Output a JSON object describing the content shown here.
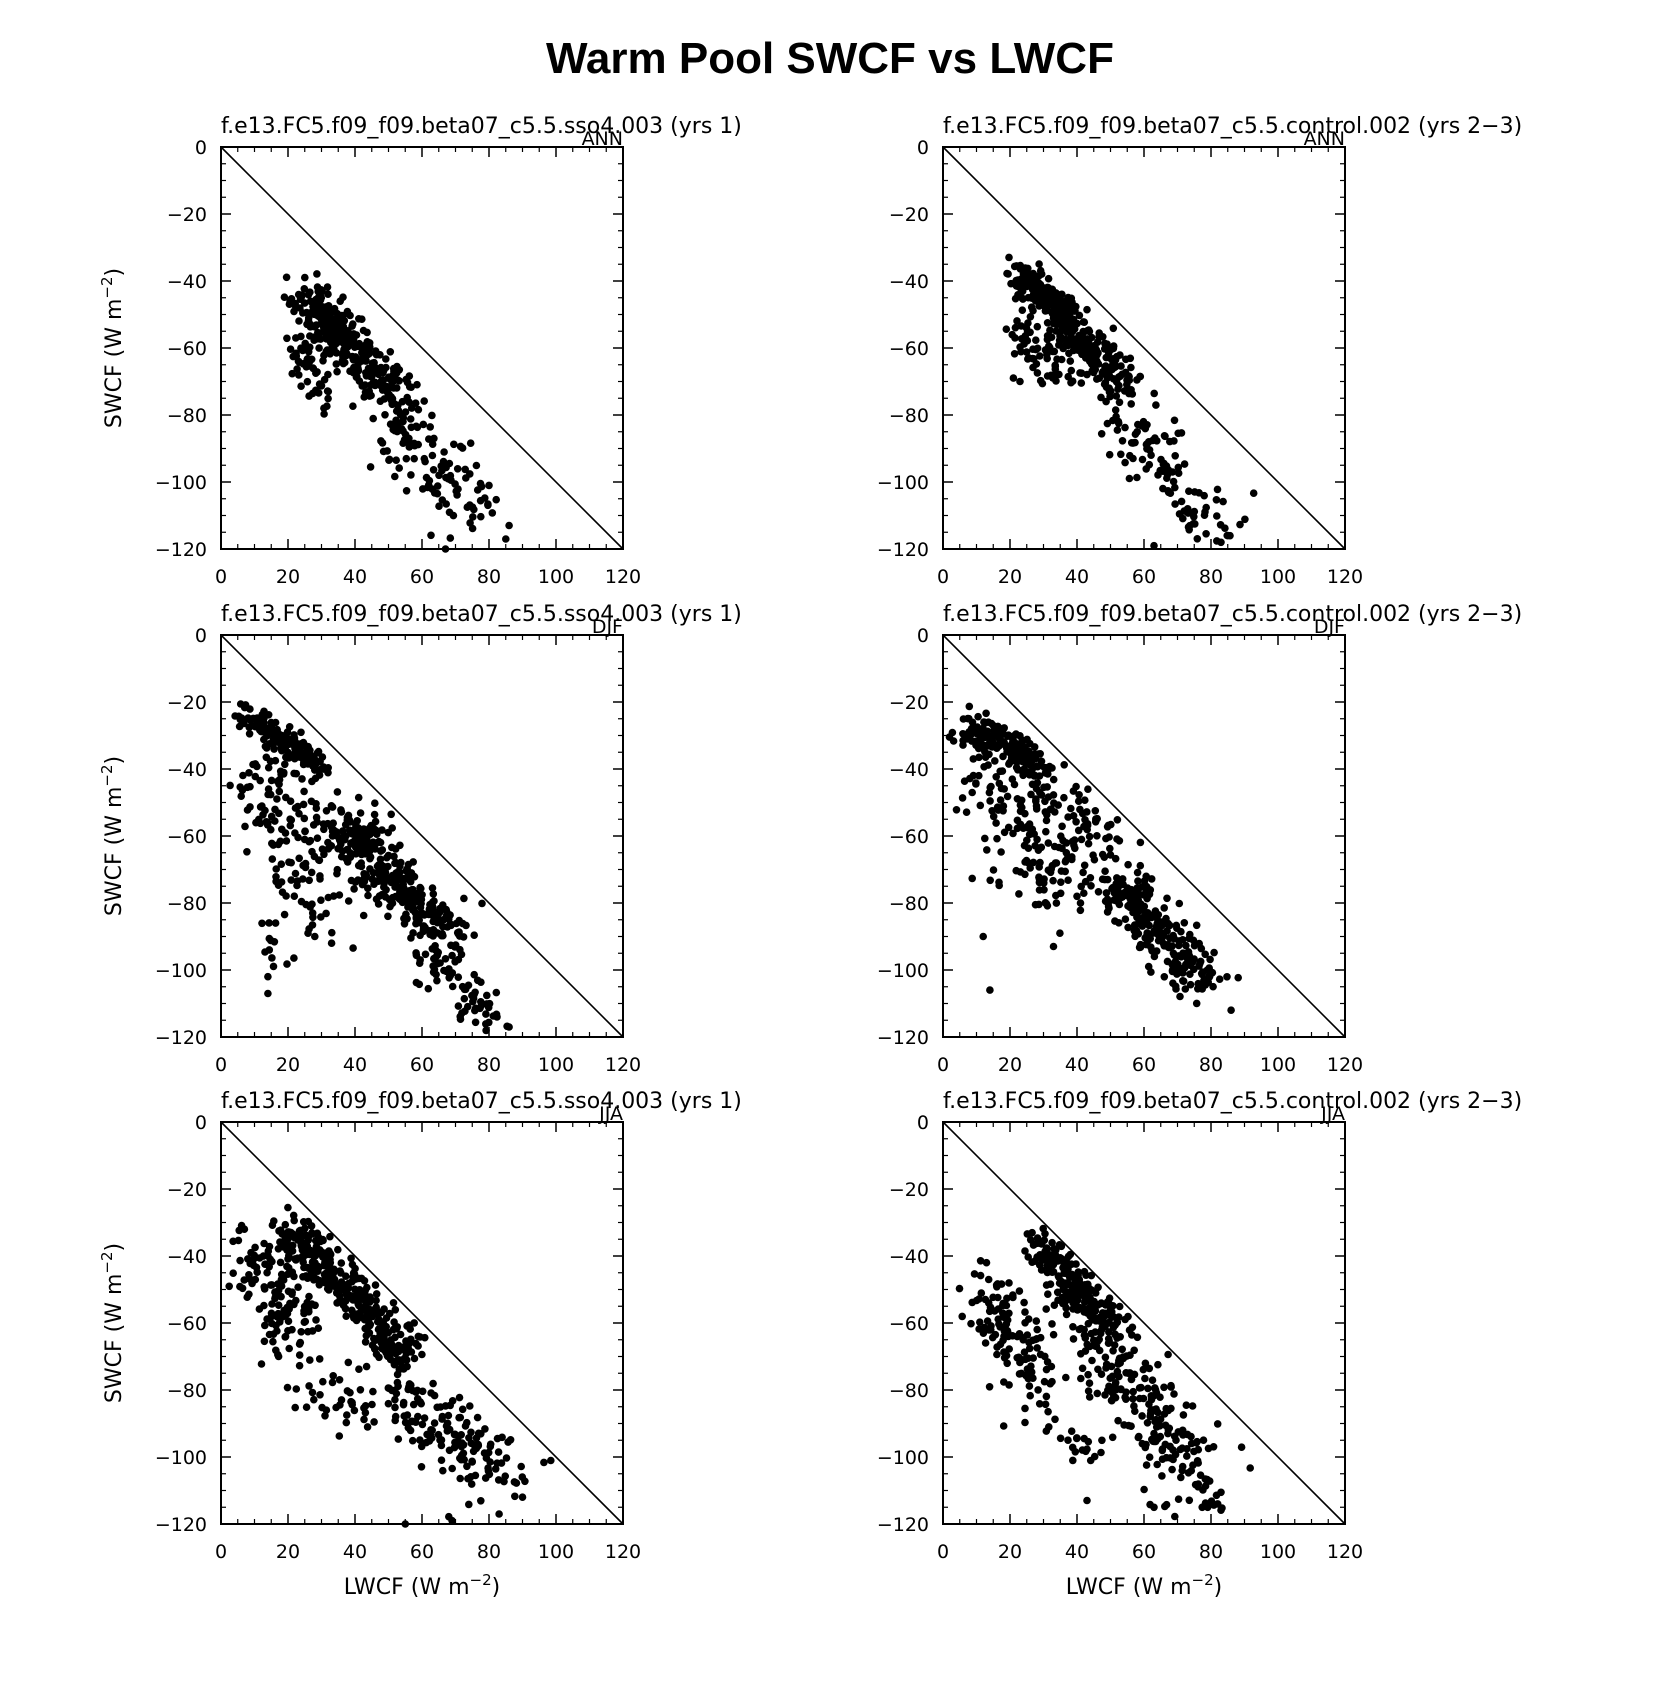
{
  "figure": {
    "title": "Warm Pool SWCF vs LWCF"
  },
  "axis_labels": {
    "x": "LWCF (W m",
    "x_sup": "−2",
    "x_close": ")",
    "y": "SWCF (W m",
    "y_sup": "−2",
    "y_close": ")"
  },
  "chart_data": [
    {
      "type": "scatter",
      "panel": "left-ANN",
      "title": "f.e13.FC5.f09_f09.beta07_c5.5.sso4.003 (yrs 1)",
      "season": "ANN",
      "xlim": [
        0,
        120
      ],
      "ylim": [
        -120,
        0
      ],
      "xticks": [
        0,
        20,
        40,
        60,
        80,
        100,
        120
      ],
      "yticks": [
        0,
        -20,
        -40,
        -60,
        -80,
        -100,
        -120
      ],
      "show_xlabel": false,
      "show_ylabel": true,
      "reference_line": "y = -x",
      "clusters": [
        {
          "x": [
            26,
            38
          ],
          "y": [
            -45,
            -58
          ],
          "n": 170,
          "sd": 3.5
        },
        {
          "x": [
            38,
            55
          ],
          "y": [
            -58,
            -78
          ],
          "n": 150,
          "sd": 3.5
        },
        {
          "x": [
            50,
            78
          ],
          "y": [
            -80,
            -110
          ],
          "n": 110,
          "sd": 5
        },
        {
          "x": [
            22,
            32
          ],
          "y": [
            -58,
            -75
          ],
          "n": 50,
          "sd": 3
        }
      ],
      "points": [
        [
          25,
          -39
        ],
        [
          86,
          -113
        ],
        [
          85,
          -117
        ],
        [
          80,
          -101
        ],
        [
          67,
          -120
        ]
      ]
    },
    {
      "type": "scatter",
      "panel": "right-ANN",
      "title": "f.e13.FC5.f09_f09.beta07_c5.5.control.002 (yrs 2−3)",
      "season": "ANN",
      "xlim": [
        0,
        120
      ],
      "ylim": [
        -120,
        0
      ],
      "xticks": [
        0,
        20,
        40,
        60,
        80,
        100,
        120
      ],
      "yticks": [
        0,
        -20,
        -40,
        -60,
        -80,
        -100,
        -120
      ],
      "show_xlabel": false,
      "show_ylabel": false,
      "reference_line": "y = -x",
      "clusters": [
        {
          "x": [
            22,
            38
          ],
          "y": [
            -38,
            -50
          ],
          "n": 190,
          "sd": 2.5
        },
        {
          "x": [
            35,
            55
          ],
          "y": [
            -52,
            -72
          ],
          "n": 180,
          "sd": 3.5
        },
        {
          "x": [
            22,
            35
          ],
          "y": [
            -52,
            -68
          ],
          "n": 60,
          "sd": 3
        },
        {
          "x": [
            52,
            80
          ],
          "y": [
            -78,
            -115
          ],
          "n": 110,
          "sd": 5
        }
      ],
      "points": [
        [
          21,
          -69
        ],
        [
          23,
          -70
        ],
        [
          85,
          -116
        ],
        [
          83,
          -118
        ],
        [
          63,
          -119
        ]
      ]
    },
    {
      "type": "scatter",
      "panel": "left-DJF",
      "title": "f.e13.FC5.f09_f09.beta07_c5.5.sso4.003 (yrs 1)",
      "season": "DJF",
      "xlim": [
        0,
        120
      ],
      "ylim": [
        -120,
        0
      ],
      "xticks": [
        0,
        20,
        40,
        60,
        80,
        100,
        120
      ],
      "yticks": [
        0,
        -20,
        -40,
        -60,
        -80,
        -100,
        -120
      ],
      "show_xlabel": false,
      "show_ylabel": true,
      "reference_line": "y = -x",
      "clusters": [
        {
          "x": [
            6,
            30
          ],
          "y": [
            -22,
            -40
          ],
          "n": 160,
          "sd": 2
        },
        {
          "x": [
            35,
            68
          ],
          "y": [
            -55,
            -90
          ],
          "n": 330,
          "sd": 4
        },
        {
          "x": [
            12,
            32
          ],
          "y": [
            -40,
            -80
          ],
          "n": 150,
          "sd": 7
        },
        {
          "x": [
            60,
            80
          ],
          "y": [
            -90,
            -115
          ],
          "n": 80,
          "sd": 4
        },
        {
          "x": [
            12,
            18
          ],
          "y": [
            -85,
            -100
          ],
          "n": 12,
          "sd": 2
        }
      ],
      "points": [
        [
          14,
          -102
        ],
        [
          14,
          -107
        ],
        [
          86,
          -117
        ],
        [
          33,
          -92
        ],
        [
          28,
          -90
        ]
      ]
    },
    {
      "type": "scatter",
      "panel": "right-DJF",
      "title": "f.e13.FC5.f09_f09.beta07_c5.5.control.002 (yrs 2−3)",
      "season": "DJF",
      "xlim": [
        0,
        120
      ],
      "ylim": [
        -120,
        0
      ],
      "xticks": [
        0,
        20,
        40,
        60,
        80,
        100,
        120
      ],
      "yticks": [
        0,
        -20,
        -40,
        -60,
        -80,
        -100,
        -120
      ],
      "show_xlabel": false,
      "show_ylabel": false,
      "reference_line": "y = -x",
      "clusters": [
        {
          "x": [
            6,
            30
          ],
          "y": [
            -27,
            -40
          ],
          "n": 170,
          "sd": 2.5
        },
        {
          "x": [
            50,
            78
          ],
          "y": [
            -72,
            -105
          ],
          "n": 260,
          "sd": 4
        },
        {
          "x": [
            12,
            35
          ],
          "y": [
            -40,
            -78
          ],
          "n": 150,
          "sd": 7
        },
        {
          "x": [
            30,
            50
          ],
          "y": [
            -45,
            -65
          ],
          "n": 60,
          "sd": 4
        }
      ],
      "points": [
        [
          14,
          -106
        ],
        [
          86,
          -112
        ],
        [
          33,
          -93
        ],
        [
          40,
          -78
        ],
        [
          12,
          -90
        ]
      ]
    },
    {
      "type": "scatter",
      "panel": "left-JJA",
      "title": "f.e13.FC5.f09_f09.beta07_c5.5.sso4.003 (yrs 1)",
      "season": "JJA",
      "xlim": [
        0,
        120
      ],
      "ylim": [
        -120,
        0
      ],
      "xticks": [
        0,
        20,
        40,
        60,
        80,
        100,
        120
      ],
      "yticks": [
        0,
        -20,
        -40,
        -60,
        -80,
        -100,
        -120
      ],
      "show_xlabel": true,
      "show_ylabel": true,
      "reference_line": "y = -x",
      "clusters": [
        {
          "x": [
            20,
            55
          ],
          "y": [
            -30,
            -70
          ],
          "n": 330,
          "sd": 3.5
        },
        {
          "x": [
            8,
            25
          ],
          "y": [
            -40,
            -60
          ],
          "n": 120,
          "sd": 5
        },
        {
          "x": [
            45,
            85
          ],
          "y": [
            -78,
            -105
          ],
          "n": 170,
          "sd": 6
        },
        {
          "x": [
            18,
            40
          ],
          "y": [
            -68,
            -88
          ],
          "n": 35,
          "sd": 5
        }
      ],
      "points": [
        [
          7,
          -32
        ],
        [
          90,
          -112
        ],
        [
          83,
          -117
        ],
        [
          55,
          -120
        ],
        [
          69,
          -119
        ]
      ]
    },
    {
      "type": "scatter",
      "panel": "right-JJA",
      "title": "f.e13.FC5.f09_f09.beta07_c5.5.control.002 (yrs 2−3)",
      "season": "JJA",
      "xlim": [
        0,
        120
      ],
      "ylim": [
        -120,
        0
      ],
      "xticks": [
        0,
        20,
        40,
        60,
        80,
        100,
        120
      ],
      "yticks": [
        0,
        -20,
        -40,
        -60,
        -80,
        -100,
        -120
      ],
      "show_xlabel": true,
      "show_ylabel": false,
      "reference_line": "y = -x",
      "clusters": [
        {
          "x": [
            28,
            50
          ],
          "y": [
            -36,
            -62
          ],
          "n": 220,
          "sd": 3
        },
        {
          "x": [
            12,
            30
          ],
          "y": [
            -50,
            -75
          ],
          "n": 110,
          "sd": 5
        },
        {
          "x": [
            45,
            78
          ],
          "y": [
            -65,
            -110
          ],
          "n": 220,
          "sd": 6
        },
        {
          "x": [
            20,
            45
          ],
          "y": [
            -75,
            -100
          ],
          "n": 40,
          "sd": 5
        }
      ],
      "points": [
        [
          13,
          -42
        ],
        [
          82,
          -114
        ],
        [
          79,
          -115
        ],
        [
          63,
          -115
        ],
        [
          43,
          -113
        ]
      ]
    }
  ]
}
